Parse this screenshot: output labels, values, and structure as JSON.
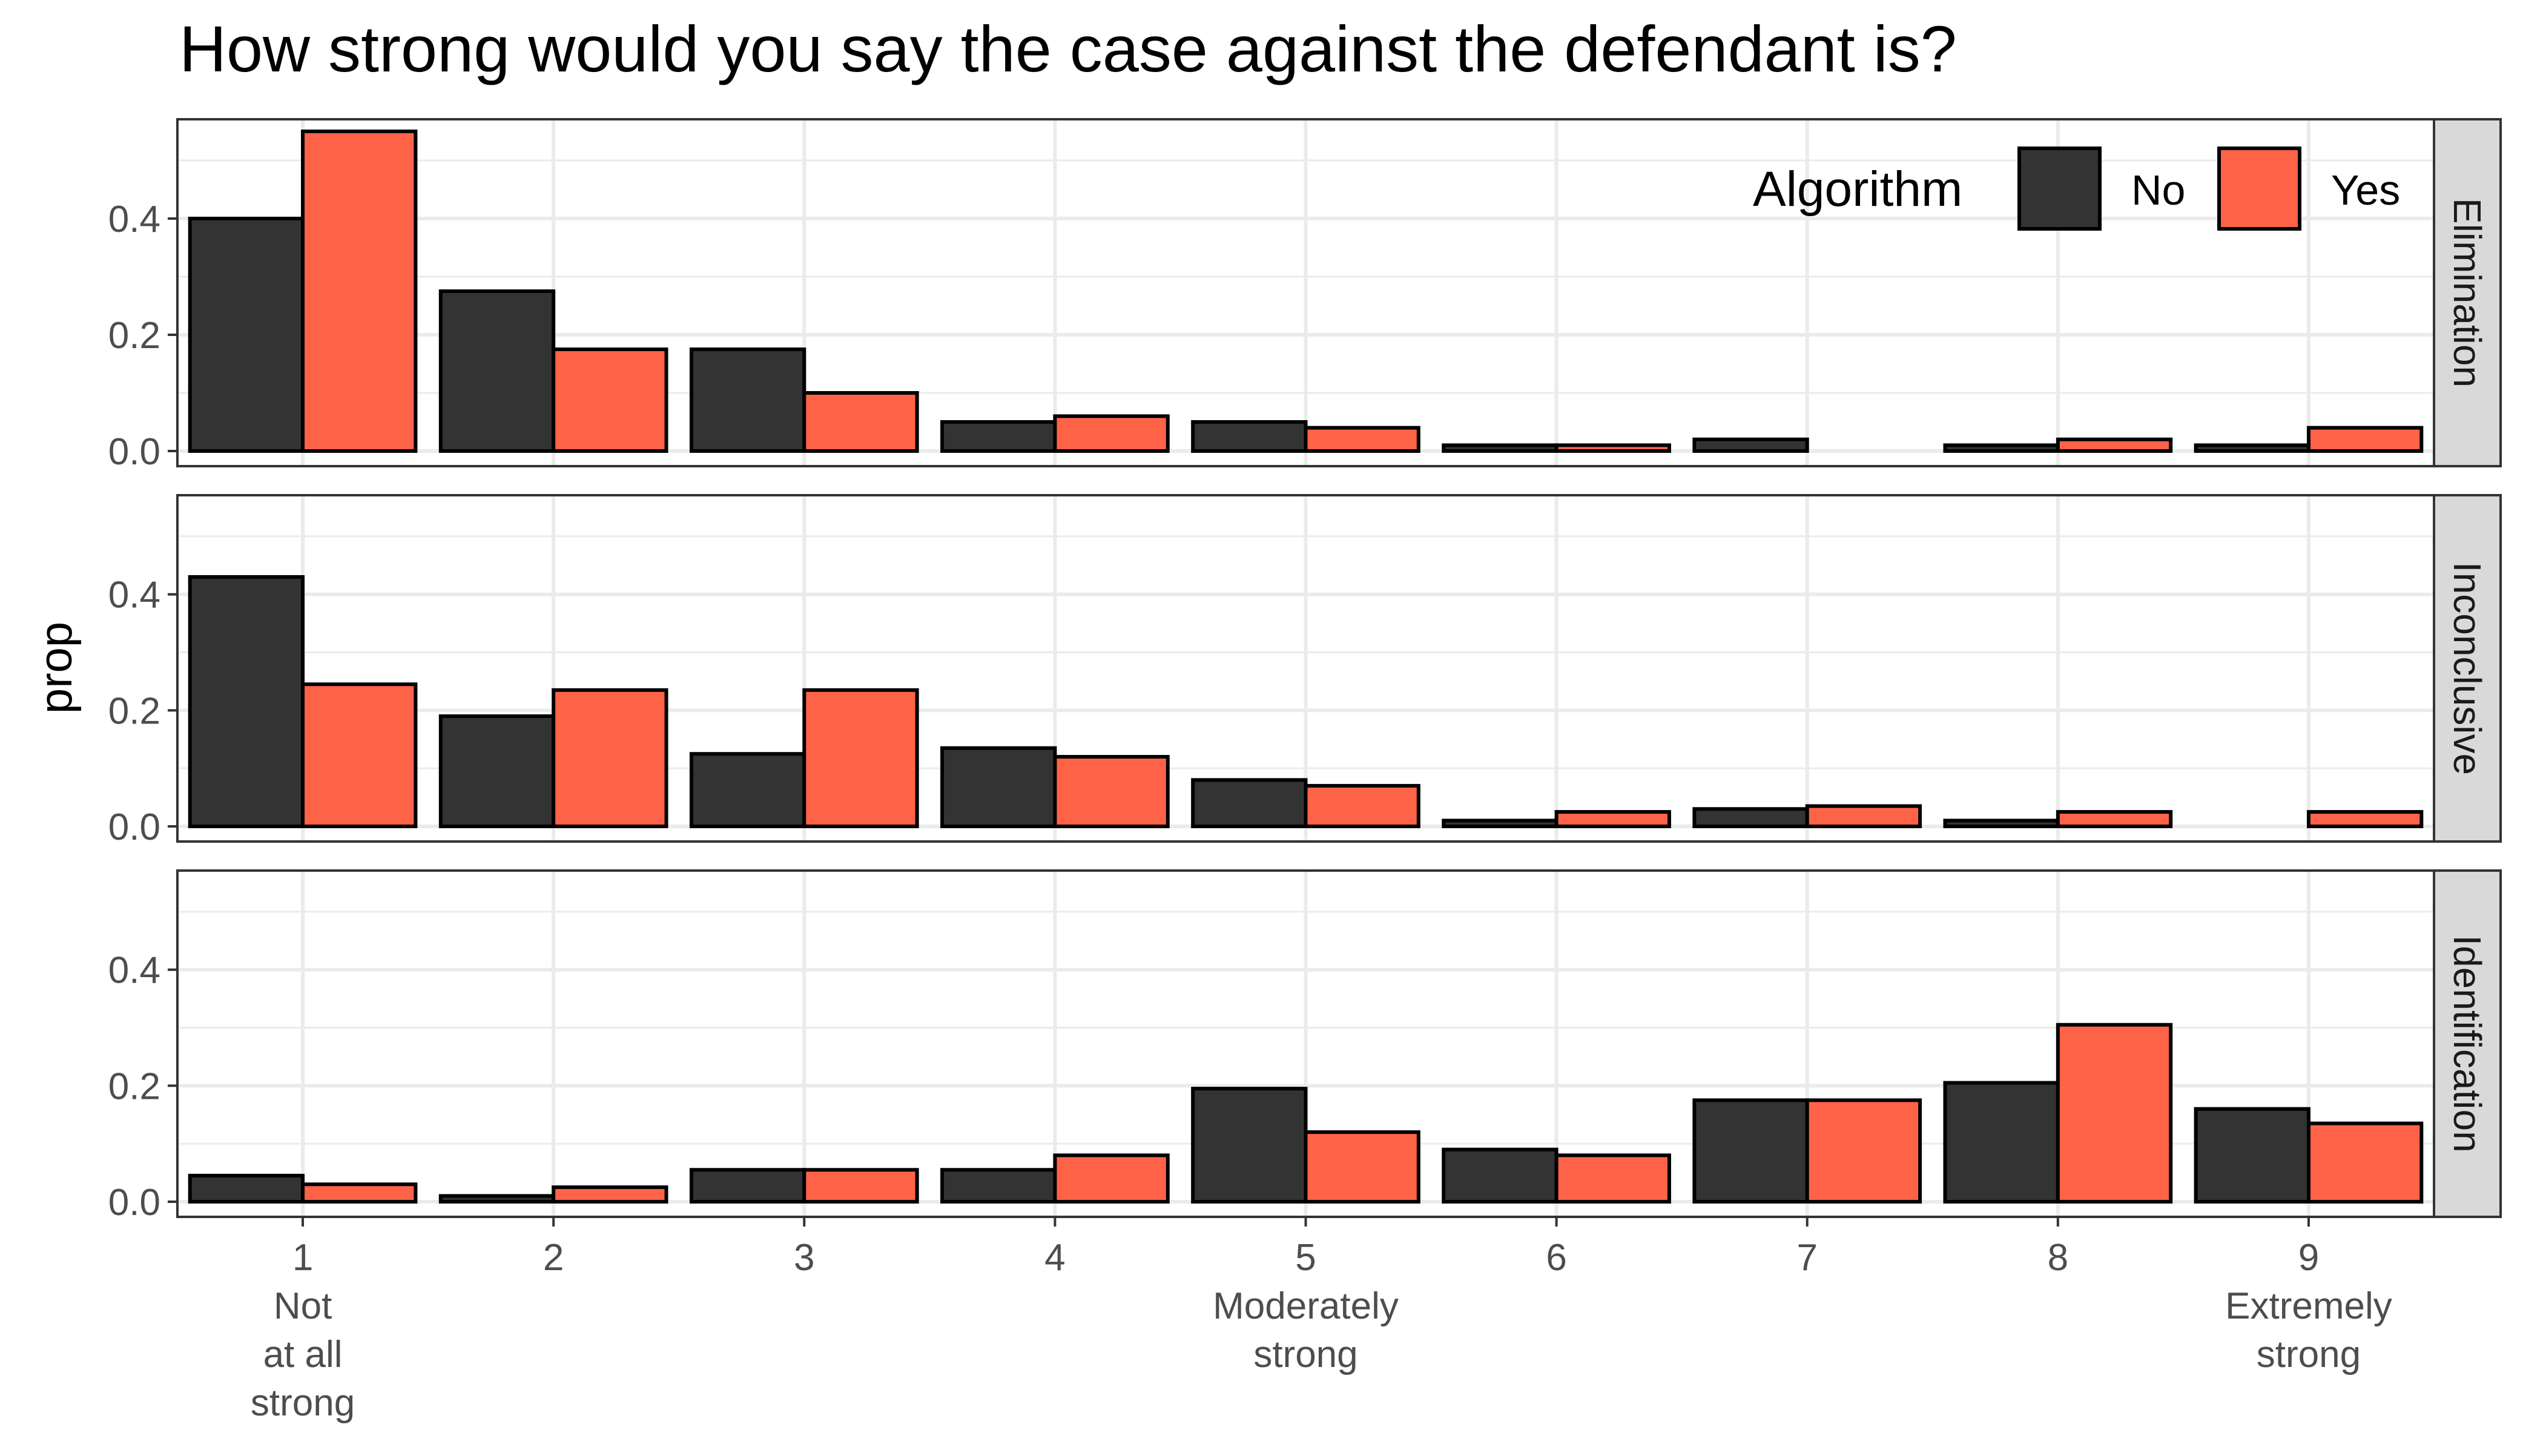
{
  "chart_data": {
    "type": "bar",
    "title": "How strong would you say the case against the defendant is?",
    "xlabel": "",
    "ylabel": "prop",
    "ylim": [
      0,
      0.55
    ],
    "yticks": [
      0.0,
      0.2,
      0.4
    ],
    "ytick_labels": [
      "0.0",
      "0.2",
      "0.4"
    ],
    "categories": [
      "1",
      "2",
      "3",
      "4",
      "5",
      "6",
      "7",
      "8",
      "9"
    ],
    "category_sublabels": {
      "1": "Not\nat all\nstrong",
      "5": "Moderately\nstrong",
      "9": "Extremely\nstrong"
    },
    "grid": true,
    "legend": {
      "title": "Algorithm",
      "position": "top-right",
      "entries": [
        {
          "label": "No",
          "color": "#333333"
        },
        {
          "label": "Yes",
          "color": "#FF6347"
        }
      ]
    },
    "panels": [
      {
        "strip": "Elimination",
        "series": [
          {
            "name": "No",
            "values": [
              0.4,
              0.275,
              0.175,
              0.05,
              0.05,
              0.01,
              0.02,
              0.01,
              0.01
            ]
          },
          {
            "name": "Yes",
            "values": [
              0.55,
              0.175,
              0.1,
              0.06,
              0.04,
              0.01,
              0.0,
              0.02,
              0.04
            ]
          }
        ]
      },
      {
        "strip": "Inconclusive",
        "series": [
          {
            "name": "No",
            "values": [
              0.43,
              0.19,
              0.125,
              0.135,
              0.08,
              0.01,
              0.03,
              0.01,
              0.0
            ]
          },
          {
            "name": "Yes",
            "values": [
              0.245,
              0.235,
              0.235,
              0.12,
              0.07,
              0.025,
              0.035,
              0.025,
              0.025
            ]
          }
        ]
      },
      {
        "strip": "Identification",
        "series": [
          {
            "name": "No",
            "values": [
              0.045,
              0.01,
              0.055,
              0.055,
              0.195,
              0.09,
              0.175,
              0.205,
              0.16
            ]
          },
          {
            "name": "Yes",
            "values": [
              0.03,
              0.025,
              0.055,
              0.08,
              0.12,
              0.08,
              0.175,
              0.305,
              0.135
            ]
          }
        ]
      }
    ],
    "colors": {
      "No": "#333333",
      "Yes": "#FF6347",
      "bar_outline": "#000000",
      "strip_fill": "#D9D9D9",
      "grid": "#EBEBEB"
    }
  }
}
